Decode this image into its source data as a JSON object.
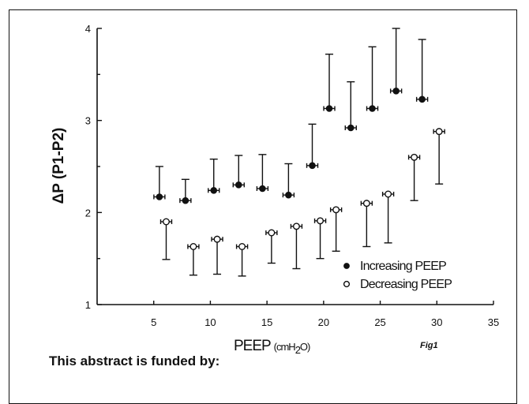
{
  "chart_data": {
    "type": "scatter",
    "xlabel": "PEEP",
    "xlabel_unit_prefix": "(cmH",
    "xlabel_unit_sub": "2",
    "xlabel_unit_suffix": "O)",
    "ylabel": "ΔP (P1-P2)",
    "xlim": [
      0,
      35
    ],
    "ylim": [
      1,
      4
    ],
    "xticks": [
      5,
      10,
      15,
      20,
      25,
      30,
      35
    ],
    "yticks": [
      1,
      2,
      3,
      4
    ],
    "grid": false,
    "legend_position": "bottom-right",
    "series": [
      {
        "name": "Increasing PEEP",
        "marker": "filled-circle",
        "error_direction": "up",
        "points": [
          {
            "x": 5.5,
            "y": 2.17,
            "err_low": 2.17,
            "err_high": 2.5
          },
          {
            "x": 7.8,
            "y": 2.13,
            "err_low": 2.13,
            "err_high": 2.36
          },
          {
            "x": 10.3,
            "y": 2.24,
            "err_low": 2.24,
            "err_high": 2.58
          },
          {
            "x": 12.5,
            "y": 2.3,
            "err_low": 2.3,
            "err_high": 2.62
          },
          {
            "x": 14.6,
            "y": 2.26,
            "err_low": 2.26,
            "err_high": 2.63
          },
          {
            "x": 16.9,
            "y": 2.19,
            "err_low": 2.19,
            "err_high": 2.53
          },
          {
            "x": 19.0,
            "y": 2.51,
            "err_low": 2.51,
            "err_high": 2.96
          },
          {
            "x": 20.5,
            "y": 3.13,
            "err_low": 3.13,
            "err_high": 3.72
          },
          {
            "x": 22.4,
            "y": 2.92,
            "err_low": 2.92,
            "err_high": 3.42
          },
          {
            "x": 24.3,
            "y": 3.13,
            "err_low": 3.13,
            "err_high": 3.8
          },
          {
            "x": 26.4,
            "y": 3.32,
            "err_low": 3.32,
            "err_high": 4.0
          },
          {
            "x": 28.7,
            "y": 3.23,
            "err_low": 3.23,
            "err_high": 3.88
          }
        ]
      },
      {
        "name": "Decreasing PEEP",
        "marker": "open-circle",
        "error_direction": "down",
        "points": [
          {
            "x": 6.1,
            "y": 1.9,
            "err_low": 1.49,
            "err_high": 1.9
          },
          {
            "x": 8.5,
            "y": 1.63,
            "err_low": 1.32,
            "err_high": 1.63
          },
          {
            "x": 10.6,
            "y": 1.71,
            "err_low": 1.33,
            "err_high": 1.71
          },
          {
            "x": 12.8,
            "y": 1.63,
            "err_low": 1.31,
            "err_high": 1.63
          },
          {
            "x": 15.4,
            "y": 1.78,
            "err_low": 1.45,
            "err_high": 1.78
          },
          {
            "x": 17.6,
            "y": 1.85,
            "err_low": 1.39,
            "err_high": 1.85
          },
          {
            "x": 19.7,
            "y": 1.91,
            "err_low": 1.5,
            "err_high": 1.91
          },
          {
            "x": 21.1,
            "y": 2.03,
            "err_low": 1.58,
            "err_high": 2.03
          },
          {
            "x": 23.8,
            "y": 2.1,
            "err_low": 1.63,
            "err_high": 2.1
          },
          {
            "x": 25.7,
            "y": 2.2,
            "err_low": 1.67,
            "err_high": 2.2
          },
          {
            "x": 28.0,
            "y": 2.6,
            "err_low": 2.13,
            "err_high": 2.6
          },
          {
            "x": 30.2,
            "y": 2.88,
            "err_low": 2.31,
            "err_high": 2.88
          }
        ]
      }
    ],
    "figure_label": "Fig1"
  },
  "footer": {
    "funding_text": "This abstract is funded by:"
  }
}
